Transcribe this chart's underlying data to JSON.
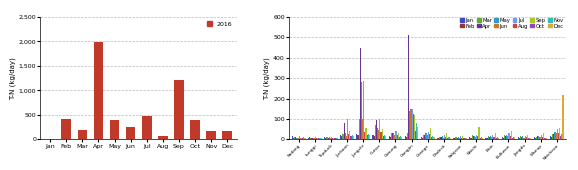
{
  "left": {
    "months": [
      "Jan",
      "Feb",
      "Mar",
      "Apr",
      "May",
      "Jun",
      "Jul",
      "Aug",
      "Sep",
      "Oct",
      "Nov",
      "Dec"
    ],
    "values": [
      0,
      420,
      190,
      1980,
      395,
      255,
      470,
      60,
      1220,
      395,
      165,
      165
    ],
    "bar_color": "#c0392b",
    "ylabel": "T-N (kg/day)",
    "ylim": [
      0,
      2500
    ],
    "yticks": [
      0,
      500,
      1000,
      1500,
      2000,
      2500
    ],
    "legend_label": "2016"
  },
  "right": {
    "streams": [
      "Sadong",
      "Lunggi",
      "Topduck",
      "Juckoon",
      "Jungchi",
      "Cutter",
      "Gosung",
      "Gangjin",
      "Grange",
      "Dadeck",
      "Sabjeon",
      "Naichi",
      "Bain",
      "Bulkwon",
      "Jangdu",
      "Waeup",
      "Naicheon"
    ],
    "month_labels": [
      "Jan",
      "Feb",
      "Mar",
      "Apr",
      "May",
      "Jun",
      "Jul",
      "Aug",
      "Sep",
      "Oct",
      "Nov",
      "Dec"
    ],
    "month_colors": [
      "#3c4bcc",
      "#993333",
      "#66aa33",
      "#663399",
      "#3399cc",
      "#cc7722",
      "#7799ee",
      "#cc4444",
      "#aacc22",
      "#9944bb",
      "#33bbbb",
      "#ddaa33"
    ],
    "ylabel": "T-N (kg/day)",
    "ylim": [
      0,
      600
    ],
    "yticks": [
      0,
      100,
      200,
      300,
      400,
      500,
      600
    ],
    "data": [
      [
        15,
        5,
        12,
        10,
        8,
        5,
        15,
        5,
        8,
        5,
        10,
        8
      ],
      [
        8,
        12,
        5,
        8,
        5,
        8,
        10,
        5,
        6,
        5,
        8,
        5
      ],
      [
        10,
        8,
        12,
        8,
        10,
        5,
        12,
        5,
        8,
        5,
        8,
        5
      ],
      [
        20,
        15,
        25,
        80,
        30,
        15,
        100,
        25,
        40,
        15,
        20,
        15
      ],
      [
        25,
        20,
        100,
        450,
        280,
        100,
        285,
        35,
        55,
        20,
        25,
        20
      ],
      [
        20,
        15,
        70,
        95,
        55,
        45,
        100,
        35,
        50,
        15,
        20,
        15
      ],
      [
        15,
        10,
        30,
        30,
        30,
        20,
        40,
        20,
        30,
        10,
        15,
        10
      ],
      [
        15,
        12,
        30,
        510,
        140,
        150,
        150,
        125,
        120,
        40,
        80,
        60
      ],
      [
        10,
        8,
        20,
        20,
        30,
        20,
        35,
        25,
        55,
        10,
        15,
        10
      ],
      [
        8,
        5,
        10,
        10,
        15,
        8,
        20,
        10,
        30,
        8,
        10,
        8
      ],
      [
        5,
        5,
        10,
        8,
        10,
        8,
        15,
        8,
        15,
        5,
        8,
        5
      ],
      [
        10,
        8,
        20,
        15,
        15,
        10,
        20,
        15,
        60,
        5,
        10,
        8
      ],
      [
        8,
        5,
        15,
        10,
        15,
        10,
        20,
        12,
        30,
        5,
        10,
        8
      ],
      [
        10,
        8,
        20,
        15,
        20,
        15,
        30,
        15,
        40,
        8,
        12,
        10
      ],
      [
        10,
        8,
        15,
        10,
        15,
        8,
        15,
        10,
        20,
        5,
        8,
        5
      ],
      [
        10,
        8,
        10,
        15,
        15,
        10,
        20,
        12,
        30,
        5,
        8,
        5
      ],
      [
        15,
        12,
        25,
        25,
        35,
        30,
        50,
        30,
        55,
        15,
        25,
        220
      ]
    ]
  }
}
